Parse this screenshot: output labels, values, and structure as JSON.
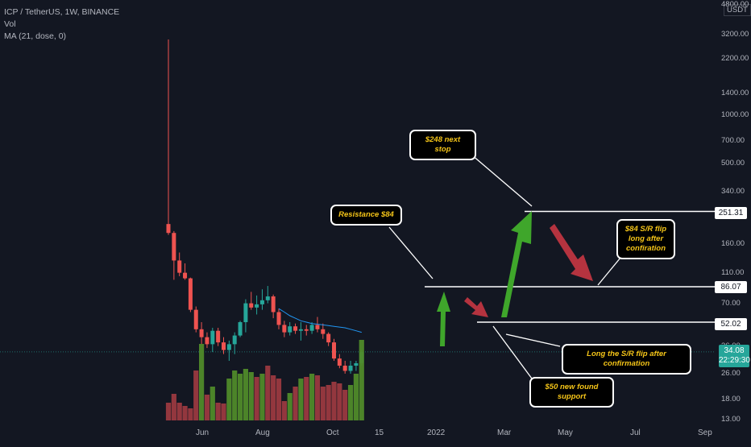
{
  "legend": {
    "symbol_line": "ICP / TetherUS, 1W, BINANCE",
    "vol_label": "Vol",
    "ma_label": "MA (21, dose, 0)"
  },
  "currency": "USDT",
  "y_axis": {
    "scale": "log",
    "ticks": [
      "4800.00",
      "3200.00",
      "2200.00",
      "1400.00",
      "1000.00",
      "700.00",
      "500.00",
      "340.00",
      "160.00",
      "110.00",
      "70.00",
      "36.00",
      "26.00",
      "18.00",
      "13.00"
    ]
  },
  "x_axis": {
    "ticks": [
      "Jun",
      "Aug",
      "Oct",
      "15",
      "2022",
      "Mar",
      "May",
      "Jul",
      "Sep"
    ]
  },
  "price_tags": [
    "251.31",
    "86.07",
    "52.02"
  ],
  "last_price": {
    "value": "34.08",
    "countdown": "22:29:30"
  },
  "annotations": {
    "next_stop": "$248 next stop",
    "resistance": "Resistance $84",
    "sr_flip": [
      "$84 S/R flip",
      "long after",
      "confiration"
    ],
    "long_flip": "Long the S/R flip after confirmation",
    "new_support": "$50 new found support"
  },
  "colors": {
    "background": "#131722",
    "up": "#26a69a",
    "down": "#ef5350",
    "vol_up": "#4f8a2a",
    "vol_down": "#9a3940",
    "ma": "#2196f3",
    "level_line": "#ffffff",
    "annotation_text": "#f5c518",
    "arrow_up": "#3fa62b",
    "arrow_down": "#b5333f"
  },
  "chart_data": {
    "type": "candlestick",
    "title": "ICP / TetherUS, 1W, BINANCE",
    "y_scale": "log",
    "ylim": [
      13,
      4800
    ],
    "levels": [
      251.31,
      86.07,
      52.02
    ],
    "candles": [
      {
        "o": 210,
        "h": 2900,
        "l": 180,
        "c": 185
      },
      {
        "o": 185,
        "h": 190,
        "l": 95,
        "c": 125
      },
      {
        "o": 125,
        "h": 140,
        "l": 100,
        "c": 105
      },
      {
        "o": 105,
        "h": 120,
        "l": 95,
        "c": 97
      },
      {
        "o": 97,
        "h": 98,
        "l": 60,
        "c": 62
      },
      {
        "o": 62,
        "h": 65,
        "l": 45,
        "c": 47
      },
      {
        "o": 47,
        "h": 52,
        "l": 38,
        "c": 42
      },
      {
        "o": 42,
        "h": 45,
        "l": 36,
        "c": 38
      },
      {
        "o": 38,
        "h": 48,
        "l": 34,
        "c": 46
      },
      {
        "o": 46,
        "h": 48,
        "l": 37,
        "c": 39
      },
      {
        "o": 39,
        "h": 42,
        "l": 33,
        "c": 35
      },
      {
        "o": 35,
        "h": 40,
        "l": 30,
        "c": 38
      },
      {
        "o": 38,
        "h": 45,
        "l": 33,
        "c": 43
      },
      {
        "o": 43,
        "h": 53,
        "l": 42,
        "c": 52
      },
      {
        "o": 52,
        "h": 72,
        "l": 45,
        "c": 68
      },
      {
        "o": 68,
        "h": 80,
        "l": 62,
        "c": 64
      },
      {
        "o": 64,
        "h": 76,
        "l": 58,
        "c": 67
      },
      {
        "o": 67,
        "h": 83,
        "l": 62,
        "c": 71
      },
      {
        "o": 71,
        "h": 87,
        "l": 68,
        "c": 75
      },
      {
        "o": 75,
        "h": 77,
        "l": 55,
        "c": 60
      },
      {
        "o": 60,
        "h": 63,
        "l": 47,
        "c": 50
      },
      {
        "o": 50,
        "h": 53,
        "l": 42,
        "c": 45
      },
      {
        "o": 45,
        "h": 52,
        "l": 43,
        "c": 49
      },
      {
        "o": 49,
        "h": 51,
        "l": 44,
        "c": 46
      },
      {
        "o": 46,
        "h": 52,
        "l": 40,
        "c": 47
      },
      {
        "o": 47,
        "h": 50,
        "l": 43,
        "c": 46
      },
      {
        "o": 46,
        "h": 52,
        "l": 44,
        "c": 50
      },
      {
        "o": 50,
        "h": 56,
        "l": 45,
        "c": 47
      },
      {
        "o": 47,
        "h": 51,
        "l": 41,
        "c": 44
      },
      {
        "o": 44,
        "h": 45,
        "l": 37,
        "c": 39
      },
      {
        "o": 39,
        "h": 41,
        "l": 30,
        "c": 31
      },
      {
        "o": 31,
        "h": 33,
        "l": 27,
        "c": 28
      },
      {
        "o": 28,
        "h": 30,
        "l": 25,
        "c": 26
      },
      {
        "o": 26,
        "h": 30,
        "l": 25,
        "c": 28
      },
      {
        "o": 28,
        "h": 30,
        "l": 26,
        "c": 29
      },
      {
        "o": 29,
        "h": 35,
        "l": 28,
        "c": 34
      }
    ],
    "volume_direction": [
      "down",
      "down",
      "down",
      "down",
      "down",
      "down",
      "up",
      "down",
      "up",
      "down",
      "down",
      "up",
      "up",
      "up",
      "up",
      "up",
      "down",
      "up",
      "down",
      "down",
      "down",
      "down",
      "up",
      "down",
      "up",
      "down",
      "up",
      "down",
      "down",
      "down",
      "down",
      "down",
      "down",
      "up",
      "up",
      "up"
    ],
    "volume_relative": [
      0.22,
      0.33,
      0.22,
      0.18,
      0.15,
      0.62,
      0.95,
      0.32,
      0.42,
      0.22,
      0.21,
      0.52,
      0.62,
      0.58,
      0.64,
      0.6,
      0.54,
      0.58,
      0.68,
      0.56,
      0.52,
      0.24,
      0.34,
      0.42,
      0.52,
      0.54,
      0.58,
      0.56,
      0.42,
      0.44,
      0.48,
      0.46,
      0.38,
      0.44,
      0.58,
      1.0
    ],
    "ma": [
      null,
      null,
      null,
      null,
      null,
      null,
      null,
      null,
      null,
      null,
      null,
      null,
      null,
      null,
      null,
      null,
      null,
      null,
      null,
      null,
      63,
      60,
      57,
      55,
      53,
      52,
      51,
      50.5,
      50,
      49.5,
      49,
      48.5,
      48,
      47,
      46,
      45
    ]
  }
}
